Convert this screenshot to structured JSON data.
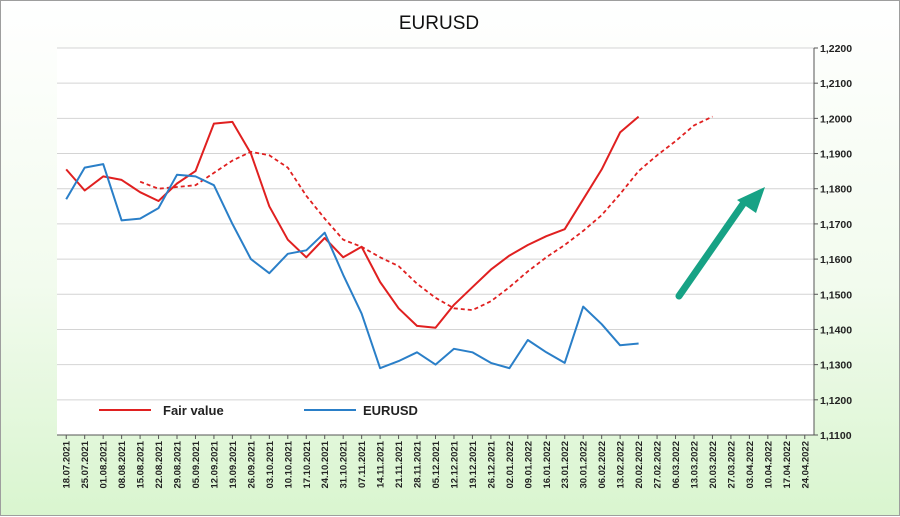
{
  "chart_data": {
    "type": "line",
    "title": "EURUSD",
    "xlabel": "",
    "ylabel": "",
    "ylim": [
      1.11,
      1.22
    ],
    "y_ticks": [
      "1,1100",
      "1,1200",
      "1,1300",
      "1,1400",
      "1,1500",
      "1,1600",
      "1,1700",
      "1,1800",
      "1,1900",
      "1,2000",
      "1,2100",
      "1,2200"
    ],
    "y_axis_position": "right",
    "grid": true,
    "legend_position": "bottom-left",
    "categories": [
      "18.07.2021",
      "25.07.2021",
      "01.08.2021",
      "08.08.2021",
      "15.08.2021",
      "22.08.2021",
      "29.08.2021",
      "05.09.2021",
      "12.09.2021",
      "19.09.2021",
      "26.09.2021",
      "03.10.2021",
      "10.10.2021",
      "17.10.2021",
      "24.10.2021",
      "31.10.2021",
      "07.11.2021",
      "14.11.2021",
      "21.11.2021",
      "28.11.2021",
      "05.12.2021",
      "12.12.2021",
      "19.12.2021",
      "26.12.2021",
      "02.01.2022",
      "09.01.2022",
      "16.01.2022",
      "23.01.2022",
      "30.01.2022",
      "06.02.2022",
      "13.02.2022",
      "20.02.2022",
      "27.02.2022",
      "06.03.2022",
      "13.03.2022",
      "20.03.2022",
      "27.03.2022",
      "03.04.2022",
      "10.04.2022",
      "17.04.2022",
      "24.04.2022"
    ],
    "series": [
      {
        "name": "Fair value",
        "color": "#e02020",
        "dash": false,
        "values": [
          1.1855,
          1.1795,
          1.1835,
          1.1825,
          1.179,
          1.1765,
          1.1815,
          1.185,
          1.1985,
          1.199,
          1.19,
          1.175,
          1.1655,
          1.1605,
          1.166,
          1.1605,
          1.1635,
          1.1535,
          1.146,
          1.141,
          1.1405,
          1.147,
          1.152,
          1.157,
          1.161,
          1.164,
          1.1665,
          1.1685,
          1.177,
          1.1855,
          1.196,
          1.2005,
          null,
          null,
          null,
          null,
          null,
          null,
          null,
          null,
          null
        ]
      },
      {
        "name": "",
        "color": "#e02020",
        "dash": true,
        "values": [
          null,
          null,
          null,
          null,
          1.182,
          1.18,
          1.1805,
          1.181,
          1.1845,
          1.188,
          1.1905,
          1.1895,
          1.186,
          1.178,
          1.1715,
          1.1655,
          1.1635,
          1.1605,
          1.158,
          1.153,
          1.149,
          1.146,
          1.1455,
          1.148,
          1.152,
          1.1565,
          1.1605,
          1.164,
          1.168,
          1.1725,
          1.1785,
          1.185,
          1.1895,
          1.1935,
          1.198,
          1.2005,
          null,
          null,
          null,
          null,
          null
        ]
      },
      {
        "name": "EURUSD",
        "color": "#2a7fc8",
        "dash": false,
        "values": [
          1.177,
          1.186,
          1.187,
          1.171,
          1.1715,
          1.1745,
          1.184,
          1.1835,
          1.181,
          1.17,
          1.16,
          1.156,
          1.1615,
          1.1625,
          1.1675,
          1.1555,
          1.1445,
          1.129,
          1.131,
          1.1335,
          1.13,
          1.1345,
          1.1335,
          1.1305,
          1.129,
          1.137,
          1.1335,
          1.1305,
          1.1465,
          1.1415,
          1.1355,
          1.136,
          null,
          null,
          null,
          null,
          null,
          null,
          null,
          null,
          null
        ]
      }
    ],
    "annotations": [
      {
        "type": "arrow",
        "color": "#1aaa8a",
        "direction": "up-right"
      }
    ]
  }
}
